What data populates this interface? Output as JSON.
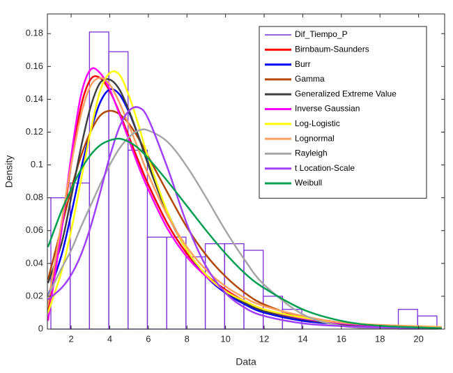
{
  "chart_data": {
    "type": "histogram",
    "xlabel": "Data",
    "ylabel": "Density",
    "xlim": [
      0.77,
      21.35
    ],
    "ylim": [
      0,
      0.192
    ],
    "xticks": [
      2,
      4,
      6,
      8,
      10,
      12,
      14,
      16,
      18,
      20
    ],
    "yticks": [
      0,
      0.02,
      0.04,
      0.06,
      0.08,
      0.1,
      0.12,
      0.14,
      0.16,
      0.18
    ],
    "legend": "upper right",
    "name": "Dif_Tiempo_P",
    "color": "#7b2fd6",
    "bins": [
      0.95,
      1.95,
      2.95,
      3.95,
      4.95,
      5.95,
      6.95,
      7.95,
      8.95,
      9.95,
      10.95,
      11.95,
      12.95,
      13.95,
      14.95,
      15.95,
      16.95,
      17.95,
      18.95,
      19.95,
      20.95
    ],
    "values": [
      0.08,
      0.089,
      0.181,
      0.169,
      0.109,
      0.056,
      0.056,
      0.044,
      0.052,
      0.052,
      0.048,
      0.02,
      0.012,
      0,
      0,
      0,
      0,
      0,
      0.012,
      0.008
    ],
    "x": [
      0.8,
      1.5,
      2,
      2.5,
      3,
      3.5,
      4,
      4.5,
      5,
      5.5,
      6,
      7,
      8,
      9,
      10,
      11,
      12,
      14,
      16,
      18,
      21.2
    ],
    "series": [
      {
        "name": "Birnbaum-Saunders",
        "color": "#ff0000",
        "values": [
          0.01,
          0.06,
          0.1,
          0.135,
          0.152,
          0.153,
          0.145,
          0.132,
          0.117,
          0.102,
          0.088,
          0.064,
          0.046,
          0.033,
          0.024,
          0.017,
          0.012,
          0.006,
          0.003,
          0.0015,
          0.0006
        ]
      },
      {
        "name": "Burr",
        "color": "#0000ff",
        "values": [
          0.02,
          0.045,
          0.07,
          0.097,
          0.12,
          0.138,
          0.146,
          0.143,
          0.132,
          0.117,
          0.101,
          0.071,
          0.048,
          0.032,
          0.022,
          0.015,
          0.01,
          0.005,
          0.003,
          0.002,
          0.001
        ]
      },
      {
        "name": "Gamma",
        "color": "#b34700",
        "values": [
          0.03,
          0.062,
          0.085,
          0.105,
          0.12,
          0.13,
          0.133,
          0.131,
          0.125,
          0.116,
          0.105,
          0.083,
          0.062,
          0.045,
          0.032,
          0.022,
          0.015,
          0.007,
          0.003,
          0.0013,
          0.0003
        ]
      },
      {
        "name": "Generalized Extreme Value",
        "color": "#404040",
        "values": [
          0.028,
          0.052,
          0.08,
          0.11,
          0.135,
          0.15,
          0.152,
          0.146,
          0.133,
          0.117,
          0.1,
          0.07,
          0.048,
          0.033,
          0.023,
          0.016,
          0.011,
          0.006,
          0.003,
          0.002,
          0.001
        ]
      },
      {
        "name": "Inverse Gaussian",
        "color": "#ff00ff",
        "values": [
          0.005,
          0.06,
          0.105,
          0.142,
          0.158,
          0.156,
          0.146,
          0.131,
          0.115,
          0.099,
          0.085,
          0.061,
          0.044,
          0.032,
          0.023,
          0.017,
          0.012,
          0.0065,
          0.0035,
          0.002,
          0.0008
        ]
      },
      {
        "name": "Log-Logistic",
        "color": "#ffff00",
        "values": [
          0.01,
          0.035,
          0.06,
          0.09,
          0.12,
          0.145,
          0.156,
          0.155,
          0.142,
          0.124,
          0.104,
          0.071,
          0.048,
          0.033,
          0.023,
          0.017,
          0.012,
          0.007,
          0.004,
          0.0025,
          0.0013
        ]
      },
      {
        "name": "Lognormal",
        "color": "#ffa060",
        "values": [
          0.015,
          0.065,
          0.1,
          0.13,
          0.148,
          0.153,
          0.149,
          0.138,
          0.124,
          0.109,
          0.094,
          0.069,
          0.05,
          0.036,
          0.026,
          0.019,
          0.014,
          0.008,
          0.004,
          0.0025,
          0.0012
        ]
      },
      {
        "name": "Rayleigh",
        "color": "#a6a6a6",
        "values": [
          0.02,
          0.037,
          0.048,
          0.062,
          0.075,
          0.088,
          0.1,
          0.11,
          0.117,
          0.121,
          0.121,
          0.114,
          0.099,
          0.08,
          0.06,
          0.042,
          0.027,
          0.009,
          0.002,
          0.0004,
          0
        ]
      },
      {
        "name": "t Location-Scale",
        "color": "#a040ff",
        "values": [
          0.018,
          0.025,
          0.033,
          0.045,
          0.062,
          0.083,
          0.105,
          0.123,
          0.133,
          0.135,
          0.128,
          0.098,
          0.064,
          0.038,
          0.022,
          0.013,
          0.008,
          0.0035,
          0.0018,
          0.001,
          0.0005
        ]
      },
      {
        "name": "Weibull",
        "color": "#00a050",
        "values": [
          0.05,
          0.072,
          0.085,
          0.097,
          0.106,
          0.112,
          0.115,
          0.116,
          0.114,
          0.11,
          0.104,
          0.09,
          0.075,
          0.06,
          0.046,
          0.034,
          0.025,
          0.012,
          0.005,
          0.002,
          0.0005
        ]
      }
    ]
  }
}
